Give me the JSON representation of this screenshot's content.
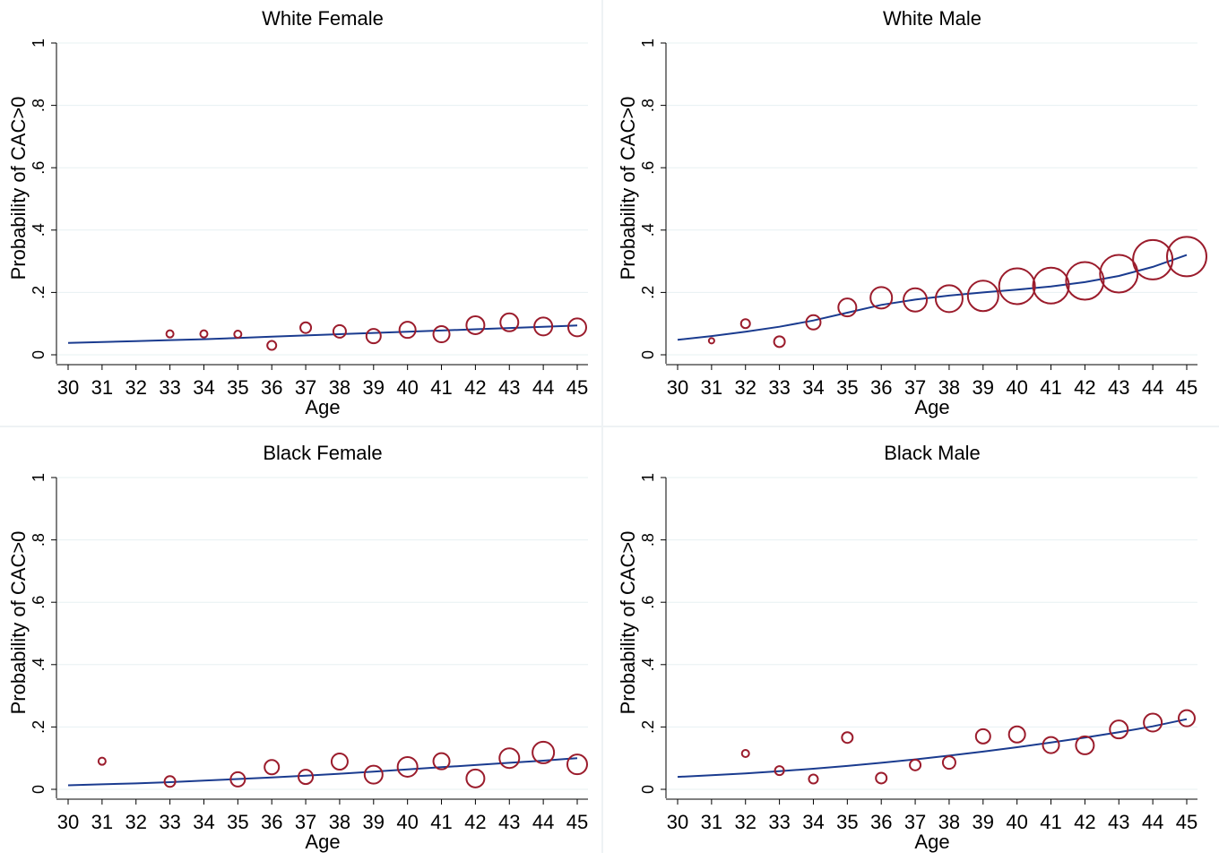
{
  "colors": {
    "line": "#1a3b8f",
    "marker": "#9b1c2c",
    "grid": "#e7f0f2",
    "axis": "#000000"
  },
  "chart_data": [
    {
      "type": "scatter",
      "title": "White Female",
      "xlabel": "Age",
      "ylabel": "Probability of CAC>0",
      "xlim": [
        30,
        45
      ],
      "ylim": [
        0,
        1
      ],
      "xticks": [
        "30",
        "31",
        "32",
        "33",
        "34",
        "35",
        "36",
        "37",
        "38",
        "39",
        "40",
        "41",
        "42",
        "43",
        "44",
        "45"
      ],
      "yticks": [
        "0",
        ".2",
        ".4",
        ".6",
        ".8",
        "1"
      ],
      "grid": true,
      "points": [
        {
          "x": 33,
          "y": 0.067,
          "size": 4
        },
        {
          "x": 34,
          "y": 0.067,
          "size": 4
        },
        {
          "x": 35,
          "y": 0.066,
          "size": 4
        },
        {
          "x": 36,
          "y": 0.03,
          "size": 5
        },
        {
          "x": 37,
          "y": 0.087,
          "size": 6
        },
        {
          "x": 38,
          "y": 0.075,
          "size": 7
        },
        {
          "x": 39,
          "y": 0.06,
          "size": 8
        },
        {
          "x": 40,
          "y": 0.08,
          "size": 9
        },
        {
          "x": 41,
          "y": 0.066,
          "size": 9
        },
        {
          "x": 42,
          "y": 0.095,
          "size": 10
        },
        {
          "x": 43,
          "y": 0.104,
          "size": 10
        },
        {
          "x": 44,
          "y": 0.091,
          "size": 10
        },
        {
          "x": 45,
          "y": 0.088,
          "size": 10
        }
      ],
      "fit": {
        "x": [
          30,
          31,
          32,
          33,
          34,
          35,
          36,
          37,
          38,
          39,
          40,
          41,
          42,
          43,
          44,
          45
        ],
        "y": [
          0.038,
          0.041,
          0.044,
          0.047,
          0.05,
          0.054,
          0.058,
          0.062,
          0.066,
          0.07,
          0.074,
          0.078,
          0.082,
          0.086,
          0.09,
          0.094
        ]
      }
    },
    {
      "type": "scatter",
      "title": "White Male",
      "xlabel": "Age",
      "ylabel": "Probability of CAC>0",
      "xlim": [
        30,
        45
      ],
      "ylim": [
        0,
        1
      ],
      "xticks": [
        "30",
        "31",
        "32",
        "33",
        "34",
        "35",
        "36",
        "37",
        "38",
        "39",
        "40",
        "41",
        "42",
        "43",
        "44",
        "45"
      ],
      "yticks": [
        "0",
        ".2",
        ".4",
        ".6",
        ".8",
        "1"
      ],
      "grid": true,
      "points": [
        {
          "x": 31,
          "y": 0.045,
          "size": 3
        },
        {
          "x": 32,
          "y": 0.1,
          "size": 5
        },
        {
          "x": 33,
          "y": 0.042,
          "size": 6
        },
        {
          "x": 34,
          "y": 0.104,
          "size": 8
        },
        {
          "x": 35,
          "y": 0.152,
          "size": 10
        },
        {
          "x": 36,
          "y": 0.183,
          "size": 12
        },
        {
          "x": 37,
          "y": 0.176,
          "size": 13
        },
        {
          "x": 38,
          "y": 0.18,
          "size": 15
        },
        {
          "x": 39,
          "y": 0.189,
          "size": 17
        },
        {
          "x": 40,
          "y": 0.22,
          "size": 20
        },
        {
          "x": 41,
          "y": 0.222,
          "size": 20
        },
        {
          "x": 42,
          "y": 0.237,
          "size": 21
        },
        {
          "x": 43,
          "y": 0.26,
          "size": 21
        },
        {
          "x": 44,
          "y": 0.305,
          "size": 22
        },
        {
          "x": 45,
          "y": 0.315,
          "size": 22
        }
      ],
      "fit": {
        "x": [
          30,
          31,
          32,
          33,
          34,
          35,
          36,
          37,
          38,
          39,
          40,
          41,
          42,
          43,
          44,
          45
        ],
        "y": [
          0.048,
          0.06,
          0.074,
          0.09,
          0.11,
          0.135,
          0.16,
          0.177,
          0.19,
          0.2,
          0.209,
          0.219,
          0.233,
          0.253,
          0.282,
          0.32
        ]
      }
    },
    {
      "type": "scatter",
      "title": "Black Female",
      "xlabel": "Age",
      "ylabel": "Probability of CAC>0",
      "xlim": [
        30,
        45
      ],
      "ylim": [
        0,
        1
      ],
      "xticks": [
        "30",
        "31",
        "32",
        "33",
        "34",
        "35",
        "36",
        "37",
        "38",
        "39",
        "40",
        "41",
        "42",
        "43",
        "44",
        "45"
      ],
      "yticks": [
        "0",
        ".2",
        ".4",
        ".6",
        ".8",
        "1"
      ],
      "grid": true,
      "points": [
        {
          "x": 31,
          "y": 0.09,
          "size": 4
        },
        {
          "x": 33,
          "y": 0.025,
          "size": 6
        },
        {
          "x": 35,
          "y": 0.032,
          "size": 8
        },
        {
          "x": 36,
          "y": 0.071,
          "size": 8
        },
        {
          "x": 37,
          "y": 0.04,
          "size": 8
        },
        {
          "x": 38,
          "y": 0.089,
          "size": 9
        },
        {
          "x": 39,
          "y": 0.047,
          "size": 10
        },
        {
          "x": 40,
          "y": 0.072,
          "size": 11
        },
        {
          "x": 41,
          "y": 0.09,
          "size": 9
        },
        {
          "x": 42,
          "y": 0.035,
          "size": 10
        },
        {
          "x": 43,
          "y": 0.1,
          "size": 11
        },
        {
          "x": 44,
          "y": 0.118,
          "size": 12
        },
        {
          "x": 45,
          "y": 0.08,
          "size": 11
        }
      ],
      "fit": {
        "x": [
          30,
          31,
          32,
          33,
          34,
          35,
          36,
          37,
          38,
          39,
          40,
          41,
          42,
          43,
          44,
          45
        ],
        "y": [
          0.013,
          0.016,
          0.019,
          0.023,
          0.028,
          0.033,
          0.038,
          0.044,
          0.05,
          0.057,
          0.064,
          0.071,
          0.078,
          0.085,
          0.092,
          0.1
        ]
      }
    },
    {
      "type": "scatter",
      "title": "Black Male",
      "xlabel": "Age",
      "ylabel": "Probability of CAC>0",
      "xlim": [
        30,
        45
      ],
      "ylim": [
        0,
        1
      ],
      "xticks": [
        "30",
        "31",
        "32",
        "33",
        "34",
        "35",
        "36",
        "37",
        "38",
        "39",
        "40",
        "41",
        "42",
        "43",
        "44",
        "45"
      ],
      "yticks": [
        "0",
        ".2",
        ".4",
        ".6",
        ".8",
        "1"
      ],
      "grid": true,
      "points": [
        {
          "x": 32,
          "y": 0.115,
          "size": 4
        },
        {
          "x": 33,
          "y": 0.06,
          "size": 5
        },
        {
          "x": 34,
          "y": 0.033,
          "size": 5
        },
        {
          "x": 35,
          "y": 0.166,
          "size": 6
        },
        {
          "x": 36,
          "y": 0.036,
          "size": 6
        },
        {
          "x": 37,
          "y": 0.078,
          "size": 6
        },
        {
          "x": 38,
          "y": 0.086,
          "size": 7
        },
        {
          "x": 39,
          "y": 0.17,
          "size": 8
        },
        {
          "x": 40,
          "y": 0.176,
          "size": 9
        },
        {
          "x": 41,
          "y": 0.142,
          "size": 9
        },
        {
          "x": 42,
          "y": 0.141,
          "size": 10
        },
        {
          "x": 43,
          "y": 0.192,
          "size": 10
        },
        {
          "x": 44,
          "y": 0.214,
          "size": 10
        },
        {
          "x": 45,
          "y": 0.228,
          "size": 9
        }
      ],
      "fit": {
        "x": [
          30,
          31,
          32,
          33,
          34,
          35,
          36,
          37,
          38,
          39,
          40,
          41,
          42,
          43,
          44,
          45
        ],
        "y": [
          0.04,
          0.045,
          0.051,
          0.058,
          0.066,
          0.075,
          0.085,
          0.096,
          0.108,
          0.121,
          0.135,
          0.15,
          0.166,
          0.183,
          0.202,
          0.225
        ]
      }
    }
  ]
}
